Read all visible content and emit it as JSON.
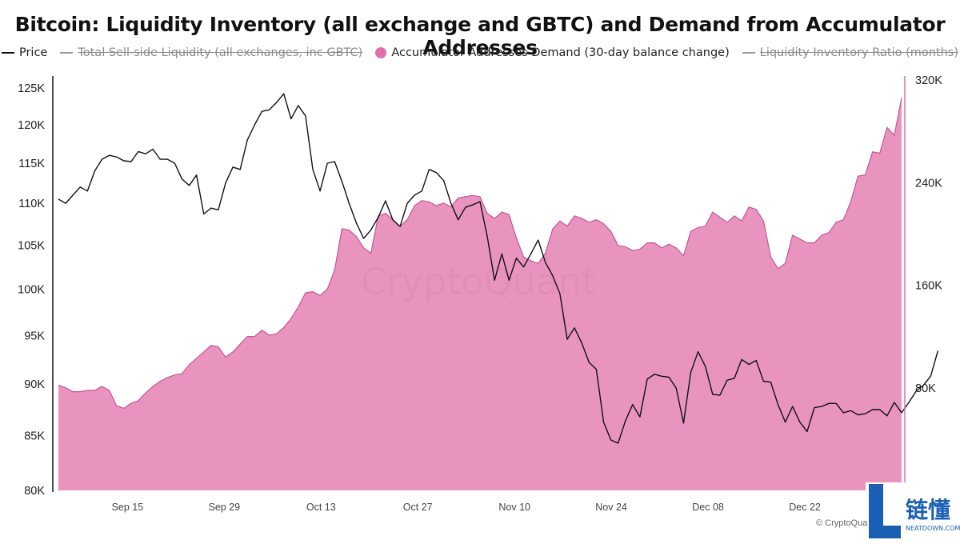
{
  "chart_data": {
    "type": "line",
    "title": "Bitcoin: Liquidity Inventory (all exchange and GBTC) and Demand from Accumulator Addresses",
    "legend": [
      {
        "label": "Price",
        "marker": "line",
        "color": "#111111",
        "hidden": false
      },
      {
        "label": "Total Sell-side Liquidity (all exchanges, inc GBTC)",
        "marker": "line",
        "color": "#9a9a9a",
        "hidden": true
      },
      {
        "label": "Accumulator Addresses Demand (30-day balance change)",
        "marker": "dot",
        "color": "#e070aa",
        "hidden": false
      },
      {
        "label": "Liquidity Inventory Ratio (months)",
        "marker": "line",
        "color": "#9a9a9a",
        "hidden": true
      }
    ],
    "legend_position": "top-center",
    "x_ticks": [
      "Sep 15",
      "Sep 29",
      "Oct 13",
      "Oct 27",
      "Nov 10",
      "Nov 24",
      "Dec 08",
      "Dec 22"
    ],
    "x_range": [
      "Sep 05",
      "Jan 05"
    ],
    "y_left": {
      "ticks": [
        "125K",
        "120K",
        "115K",
        "110K",
        "105K",
        "100K",
        "95K",
        "90K",
        "85K",
        "80K"
      ],
      "scale": "log",
      "range": [
        80000,
        125000
      ]
    },
    "y_right": {
      "ticks": [
        "320K",
        "240K",
        "160K",
        "80K"
      ],
      "range": [
        0,
        320000
      ]
    },
    "grid": false,
    "watermark": "CryptoQuant",
    "copyright": "© CryptoQua",
    "series": [
      {
        "name": "Price",
        "axis": "left",
        "color": "#111111",
        "values": [
          110500,
          110000,
          111000,
          112000,
          111500,
          114000,
          115500,
          116000,
          115800,
          115300,
          115200,
          116500,
          116200,
          116800,
          115500,
          115500,
          115000,
          113000,
          112200,
          113500,
          108700,
          109400,
          109200,
          112500,
          114500,
          114200,
          118000,
          120000,
          121800,
          122000,
          123000,
          124200,
          120800,
          122600,
          121200,
          114200,
          111500,
          115000,
          115200,
          112700,
          110000,
          107600,
          105800,
          106800,
          108300,
          110300,
          108000,
          107200,
          110000,
          111000,
          111500,
          114200,
          113800,
          112800,
          110000,
          108000,
          109500,
          109800,
          110200,
          106000,
          101000,
          104000,
          101000,
          103500,
          102500,
          104000,
          105600,
          103000,
          101500,
          99500,
          94600,
          95800,
          94200,
          92200,
          91500,
          86300,
          84600,
          84300,
          86400,
          88000,
          86800,
          90500,
          91000,
          90800,
          90700,
          89600,
          86200,
          91200,
          93300,
          91800,
          89000,
          88900,
          90400,
          90600,
          92500,
          92000,
          92400,
          90300,
          90200,
          88000,
          86300,
          87800,
          86300,
          85400,
          87700,
          87800,
          88100,
          88100,
          87200,
          87400,
          87000,
          87100,
          87500,
          87500,
          86900,
          88200,
          87200,
          88200,
          89300,
          89900,
          90800,
          93400
        ]
      },
      {
        "name": "Accumulator Addresses Demand (30-day balance change)",
        "axis": "right",
        "color": "#e070aa",
        "values": [
          82000,
          80000,
          77000,
          77000,
          78000,
          78000,
          81000,
          78000,
          66000,
          64000,
          68000,
          70000,
          76000,
          81000,
          85000,
          88000,
          90000,
          91000,
          98000,
          103000,
          108000,
          113000,
          112000,
          104000,
          108000,
          114000,
          120000,
          120000,
          125000,
          121000,
          122000,
          127000,
          134000,
          143000,
          154000,
          155000,
          152000,
          157000,
          172000,
          204000,
          203000,
          198000,
          189000,
          185000,
          214000,
          216000,
          211000,
          206000,
          211000,
          222000,
          226000,
          225000,
          222000,
          224000,
          221000,
          228000,
          229000,
          230000,
          229000,
          216000,
          212000,
          217000,
          215000,
          197000,
          182000,
          179000,
          177000,
          185000,
          204000,
          210000,
          206000,
          214000,
          212000,
          209000,
          211000,
          208000,
          202000,
          191000,
          190000,
          187000,
          188000,
          193000,
          193000,
          189000,
          192000,
          189000,
          183000,
          202000,
          205000,
          206000,
          217000,
          213000,
          209000,
          214000,
          210000,
          221000,
          219000,
          210000,
          182000,
          173000,
          177000,
          199000,
          196000,
          193000,
          193000,
          199000,
          201000,
          209000,
          211000,
          225000,
          245000,
          246000,
          264000,
          263000,
          283000,
          277000,
          306000
        ]
      }
    ]
  }
}
